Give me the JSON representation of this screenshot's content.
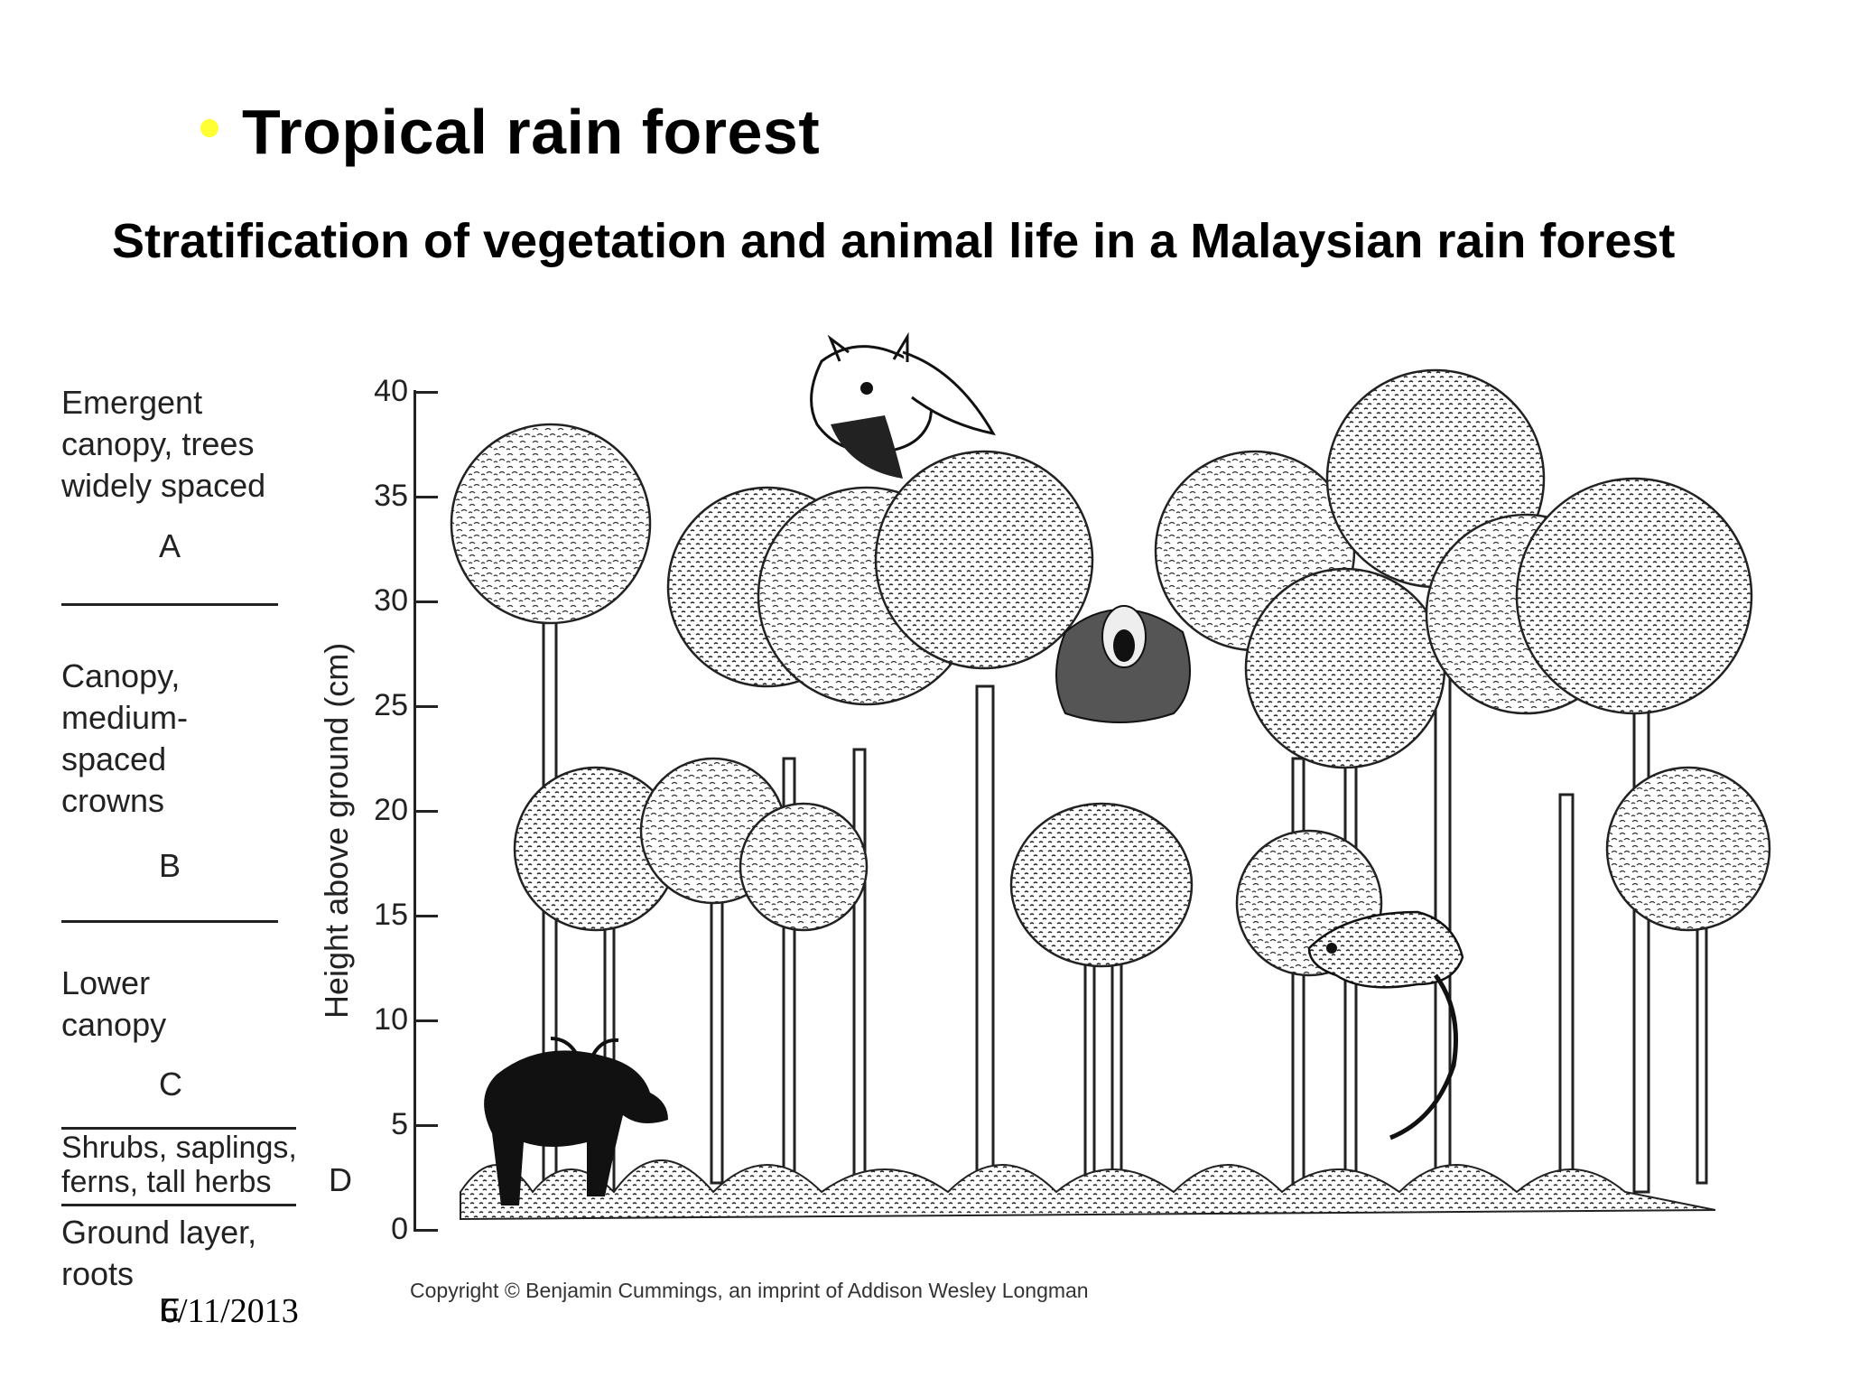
{
  "slide": {
    "title": "Tropical rain forest",
    "bullet_color": "#ffff33",
    "subtitle": "Stratification of vegetation and animal life in a Malaysian rain forest",
    "date": "6/11/2013"
  },
  "layers": [
    {
      "lines": [
        "Emergent",
        "canopy, trees",
        "widely spaced"
      ],
      "letter": "A"
    },
    {
      "lines": [
        "Canopy,",
        "medium-",
        "spaced",
        "crowns"
      ],
      "letter": "B"
    },
    {
      "lines": [
        "Lower",
        "canopy"
      ],
      "letter": "C"
    },
    {
      "lines": [
        "Shrubs, saplings,",
        "ferns, tall herbs"
      ],
      "letter": "D"
    },
    {
      "lines": [
        "Ground layer,",
        "roots"
      ],
      "letter": "E"
    }
  ],
  "axis": {
    "label": "Height above ground (cm)",
    "ticks": [
      "0",
      "5",
      "10",
      "15",
      "20",
      "25",
      "30",
      "35",
      "40"
    ]
  },
  "illustration": {
    "description_icons": [
      "flying-squirrel-icon",
      "gibbon-icon",
      "tapir-icon",
      "civet-icon",
      "rainforest-trees-icon"
    ]
  },
  "copyright": "Copyright © Benjamin Cummings, an imprint of Addison Wesley Longman"
}
